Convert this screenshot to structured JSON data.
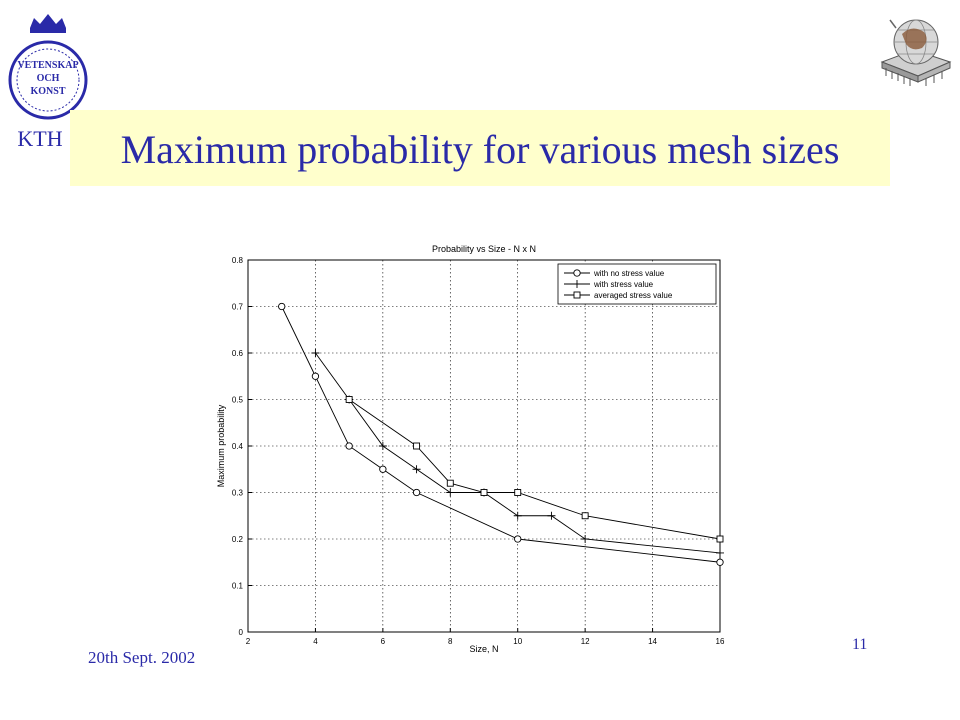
{
  "slide": {
    "title": "Maximum probability for various mesh sizes",
    "footer_date": "20th Sept. 2002",
    "page_number": "11",
    "logo_text": [
      "VETENSKAP",
      "OCH",
      "KONST",
      "KTH"
    ],
    "colors": {
      "title": "#2a2aa8",
      "title_band": "#ffffcc"
    }
  },
  "chart_data": {
    "type": "line",
    "title": "Probability vs Size - N x N",
    "xlabel": "Size, N",
    "ylabel": "Maximum probability",
    "xlim": [
      2,
      16
    ],
    "ylim": [
      0,
      0.8
    ],
    "xticks": [
      2,
      4,
      6,
      8,
      10,
      12,
      14,
      16
    ],
    "yticks": [
      0,
      0.1,
      0.2,
      0.3,
      0.4,
      0.5,
      0.6,
      0.7,
      0.8
    ],
    "grid": true,
    "legend_position": "top-right",
    "series": [
      {
        "name": "with no stress value",
        "marker": "circle",
        "points": [
          [
            3,
            0.7
          ],
          [
            4,
            0.55
          ],
          [
            5,
            0.4
          ],
          [
            6,
            0.35
          ],
          [
            7,
            0.3
          ],
          [
            10,
            0.2
          ],
          [
            16,
            0.15
          ]
        ]
      },
      {
        "name": "with stress value",
        "marker": "plus",
        "points": [
          [
            4,
            0.6
          ],
          [
            5,
            0.5
          ],
          [
            6,
            0.4
          ],
          [
            7,
            0.35
          ],
          [
            8,
            0.3
          ],
          [
            9,
            0.3
          ],
          [
            10,
            0.25
          ],
          [
            11,
            0.25
          ],
          [
            12,
            0.2
          ],
          [
            16,
            0.17
          ]
        ]
      },
      {
        "name": "averaged stress value",
        "marker": "square",
        "points": [
          [
            5,
            0.5
          ],
          [
            7,
            0.4
          ],
          [
            8,
            0.32
          ],
          [
            9,
            0.3
          ],
          [
            10,
            0.3
          ],
          [
            12,
            0.25
          ],
          [
            16,
            0.2
          ]
        ]
      }
    ]
  }
}
